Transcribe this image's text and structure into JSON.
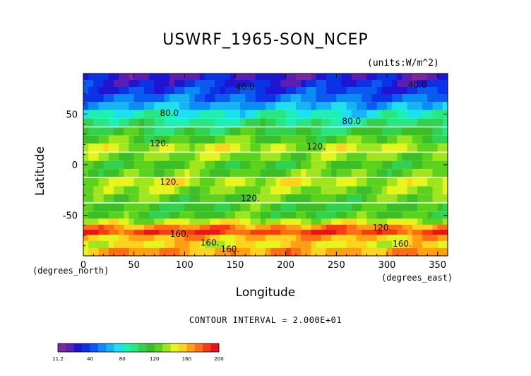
{
  "chart_data": {
    "type": "heatmap",
    "title": "USWRF_1965-SON_NCEP",
    "units_label": "(units:W/m^2)",
    "xlabel": "Longitude",
    "ylabel": "Latitude",
    "x_unit_label": "(degrees_east)",
    "y_unit_label": "(degrees_north)",
    "xlim": [
      0,
      360
    ],
    "ylim": [
      -90,
      90
    ],
    "x_ticks": [
      0,
      50,
      100,
      150,
      200,
      250,
      300,
      350
    ],
    "y_ticks": [
      -50,
      0,
      50
    ],
    "contour_interval_text": "CONTOUR INTERVAL = 2.000E+01",
    "contour_labels": [
      "40.0",
      "40.0",
      "80.0",
      "80.0",
      "120.",
      "120.",
      "120.",
      "120.",
      "120.",
      "160.",
      "160.",
      "160.",
      "160."
    ],
    "colorbar": {
      "min_label": "11.2",
      "tick_labels": [
        "40",
        "80",
        "120",
        "160",
        "200"
      ],
      "colors": [
        "#7a28a0",
        "#5a1eb4",
        "#1e14d2",
        "#0a32e6",
        "#0a5af0",
        "#0a8cf5",
        "#14b4f5",
        "#1ee1f0",
        "#1ef0b4",
        "#28e682",
        "#32d250",
        "#3cbe28",
        "#5ad21e",
        "#a0e61e",
        "#e6f51e",
        "#ffd21e",
        "#ffa014",
        "#ff6e14",
        "#f53c14",
        "#e6141e"
      ]
    },
    "latitude_bands": [
      {
        "lat": 87,
        "value": 22
      },
      {
        "lat": 80,
        "value": 30
      },
      {
        "lat": 73,
        "value": 38
      },
      {
        "lat": 66,
        "value": 48
      },
      {
        "lat": 58,
        "value": 64
      },
      {
        "lat": 50,
        "value": 82
      },
      {
        "lat": 42,
        "value": 95
      },
      {
        "lat": 33,
        "value": 108
      },
      {
        "lat": 25,
        "value": 122
      },
      {
        "lat": 17,
        "value": 138
      },
      {
        "lat": 8,
        "value": 130
      },
      {
        "lat": 0,
        "value": 118
      },
      {
        "lat": -8,
        "value": 125
      },
      {
        "lat": -17,
        "value": 140
      },
      {
        "lat": -25,
        "value": 132
      },
      {
        "lat": -33,
        "value": 122
      },
      {
        "lat": -42,
        "value": 115
      },
      {
        "lat": -50,
        "value": 118
      },
      {
        "lat": -57,
        "value": 140
      },
      {
        "lat": -63,
        "value": 170
      },
      {
        "lat": -68,
        "value": 185
      },
      {
        "lat": -73,
        "value": 160
      },
      {
        "lat": -79,
        "value": 150
      },
      {
        "lat": -86,
        "value": 165
      }
    ],
    "grid": false
  }
}
